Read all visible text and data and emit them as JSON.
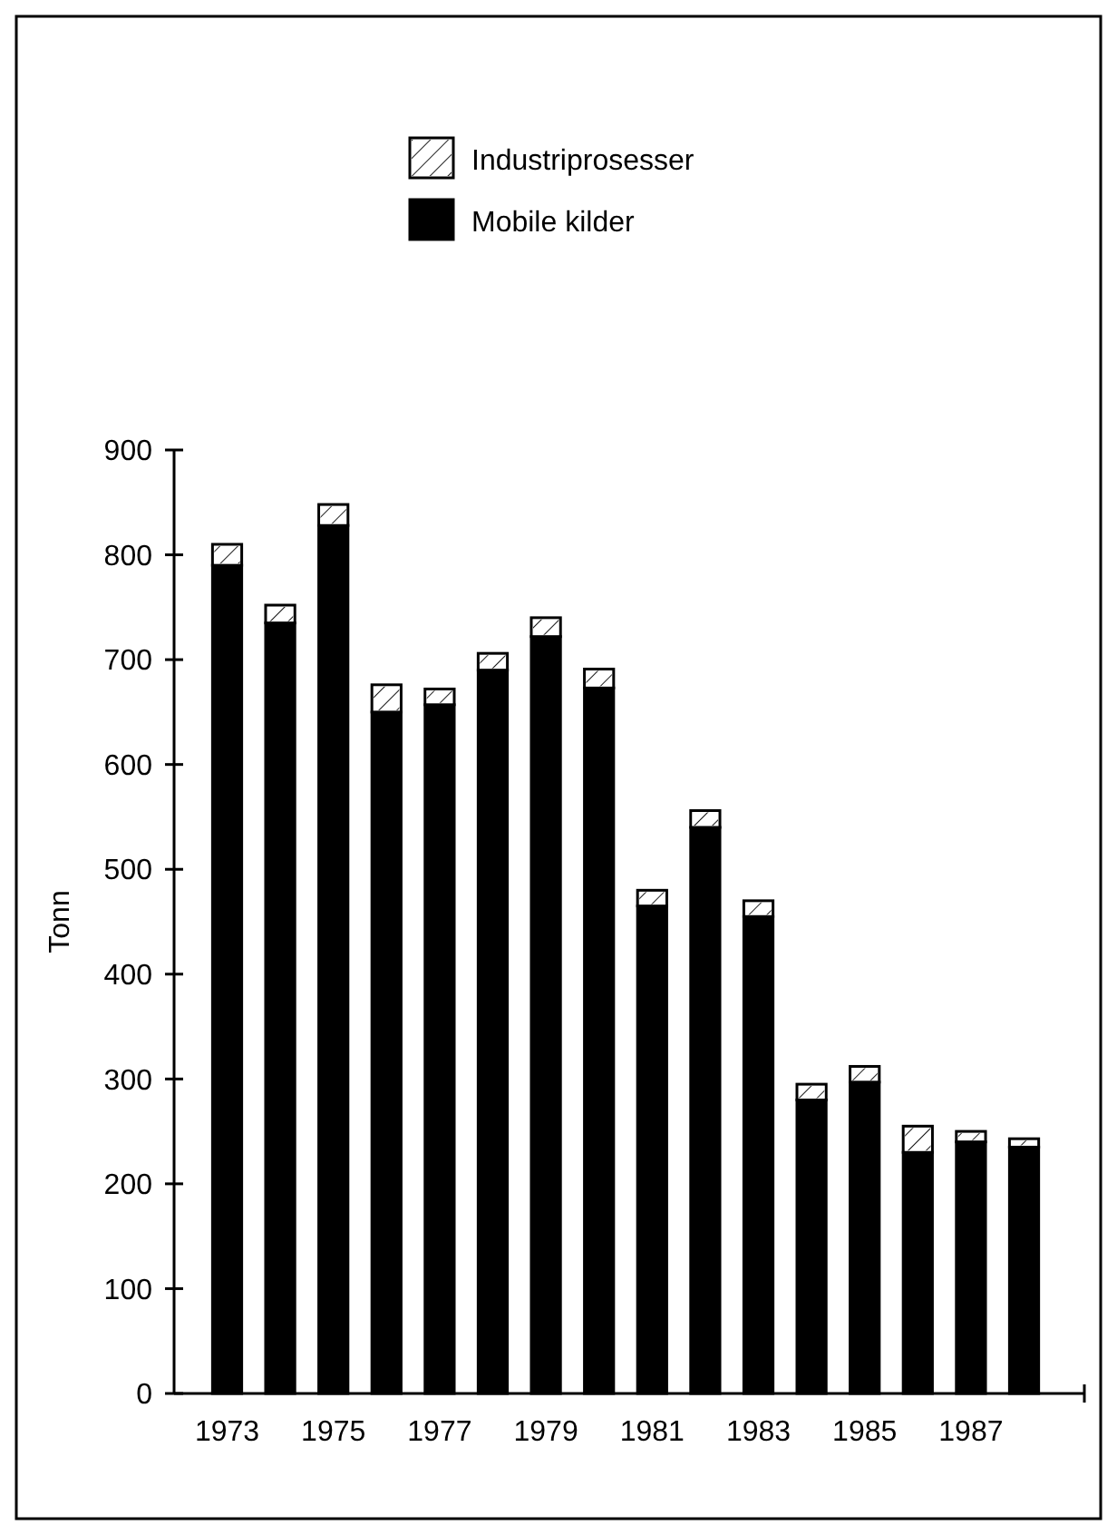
{
  "chart_data": {
    "type": "bar",
    "stacked": true,
    "ylabel": "Tonn",
    "categories": [
      "1973",
      null,
      "1975",
      null,
      "1977",
      null,
      "1979",
      null,
      "1981",
      null,
      "1983",
      null,
      "1985",
      null,
      "1987",
      null
    ],
    "series": [
      {
        "name": "Mobile kilder",
        "color": "#000000",
        "values": [
          790,
          735,
          828,
          650,
          657,
          690,
          722,
          673,
          465,
          540,
          455,
          280,
          297,
          230,
          240,
          235
        ]
      },
      {
        "name": "Industriprosesser",
        "color": "#ffffff",
        "values": [
          20,
          17,
          20,
          26,
          15,
          16,
          18,
          18,
          15,
          16,
          15,
          15,
          15,
          25,
          10,
          8
        ]
      }
    ],
    "ylim": [
      0,
      900
    ],
    "yticks": [
      0,
      100,
      200,
      300,
      400,
      500,
      600,
      700,
      800,
      900
    ],
    "grid": false,
    "legend": "top"
  }
}
